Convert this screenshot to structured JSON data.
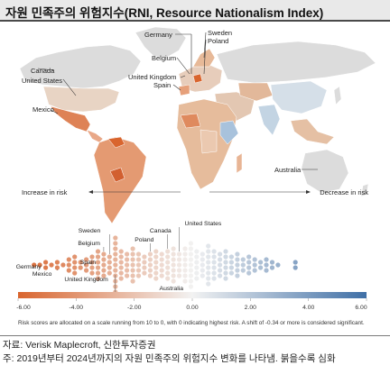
{
  "title": "자원 민족주의 위험지수(RNI, Resource Nationalism Index)",
  "source": "자료: Verisk Maplecroft, 신한투자증권",
  "note": "주: 2019년부터 2024년까지의 자원 민족주의 위험지수 변화를 나타냄. 붉을수록 심화",
  "colors": {
    "background": "#ffffff",
    "ocean": "#ffffff",
    "land_neutral": "#dcdcdc",
    "increase": "#d9652e",
    "decrease": "#3f6fa6",
    "title_bar": "#e9e9e9"
  },
  "map": {
    "country_labels": [
      "Germany",
      "Sweden",
      "Poland",
      "Canada",
      "United States",
      "Belgium",
      "United Kingdom",
      "Spain",
      "Mexico",
      "Australia"
    ]
  },
  "chart_data": {
    "type": "scatter",
    "description_labels": {
      "left": "Increase in risk",
      "right": "Decrease in risk"
    },
    "xlim": [
      -6,
      6
    ],
    "color_scale": {
      "min": -6,
      "mid": 0,
      "max": 6,
      "low_color": "#d9652e",
      "mid_color": "#f2f2f2",
      "high_color": "#3f6fa6"
    },
    "tick_labels": [
      "-6.00",
      "-4.00",
      "-2.00",
      "0.00",
      "2.00",
      "4.00",
      "6.00"
    ],
    "tick_values": [
      -6,
      -4,
      -2,
      0,
      2,
      4,
      6
    ],
    "bins": [
      {
        "x": -5.45,
        "count": 1
      },
      {
        "x": -5.25,
        "count": 1
      },
      {
        "x": -5.05,
        "count": 2
      },
      {
        "x": -4.85,
        "count": 1
      },
      {
        "x": -4.65,
        "count": 2
      },
      {
        "x": -4.45,
        "count": 1
      },
      {
        "x": -4.25,
        "count": 3
      },
      {
        "x": -4.05,
        "count": 4
      },
      {
        "x": -3.85,
        "count": 2
      },
      {
        "x": -3.65,
        "count": 3
      },
      {
        "x": -3.45,
        "count": 4
      },
      {
        "x": -3.25,
        "count": 6
      },
      {
        "x": -3.05,
        "count": 5
      },
      {
        "x": -2.85,
        "count": 4
      },
      {
        "x": -2.65,
        "count": 11
      },
      {
        "x": -2.45,
        "count": 6
      },
      {
        "x": -2.25,
        "count": 5
      },
      {
        "x": -2.05,
        "count": 7
      },
      {
        "x": -1.85,
        "count": 5
      },
      {
        "x": -1.65,
        "count": 4
      },
      {
        "x": -1.45,
        "count": 5
      },
      {
        "x": -1.25,
        "count": 6
      },
      {
        "x": -1.05,
        "count": 5
      },
      {
        "x": -0.85,
        "count": 6
      },
      {
        "x": -0.65,
        "count": 7
      },
      {
        "x": -0.45,
        "count": 5
      },
      {
        "x": -0.25,
        "count": 7
      },
      {
        "x": -0.05,
        "count": 9
      },
      {
        "x": 0.15,
        "count": 6
      },
      {
        "x": 0.35,
        "count": 5
      },
      {
        "x": 0.55,
        "count": 8
      },
      {
        "x": 0.75,
        "count": 6
      },
      {
        "x": 0.95,
        "count": 5
      },
      {
        "x": 1.15,
        "count": 6
      },
      {
        "x": 1.35,
        "count": 4
      },
      {
        "x": 1.55,
        "count": 5
      },
      {
        "x": 1.75,
        "count": 3
      },
      {
        "x": 1.95,
        "count": 4
      },
      {
        "x": 2.15,
        "count": 3
      },
      {
        "x": 2.35,
        "count": 2
      },
      {
        "x": 2.55,
        "count": 3
      },
      {
        "x": 2.75,
        "count": 2
      },
      {
        "x": 2.95,
        "count": 1
      },
      {
        "x": 3.55,
        "count": 2
      }
    ],
    "annotations": [
      {
        "label": "Germany",
        "x": -5.45
      },
      {
        "label": "Mexico",
        "x": -4.65
      },
      {
        "label": "Spain",
        "x": -4.05
      },
      {
        "label": "Belgium",
        "x": -3.05
      },
      {
        "label": "Sweden",
        "x": -2.85
      },
      {
        "label": "United Kingdom",
        "x": -2.65
      },
      {
        "label": "Poland",
        "x": -1.45
      },
      {
        "label": "Canada",
        "x": -0.85
      },
      {
        "label": "United States",
        "x": -0.45
      },
      {
        "label": "Australia",
        "x": -0.25
      }
    ],
    "caption": "Risk scores are allocated on a scale running from 10 to 0, with 0 indicating highest risk. A shift of -0.34 or more is considered significant."
  }
}
